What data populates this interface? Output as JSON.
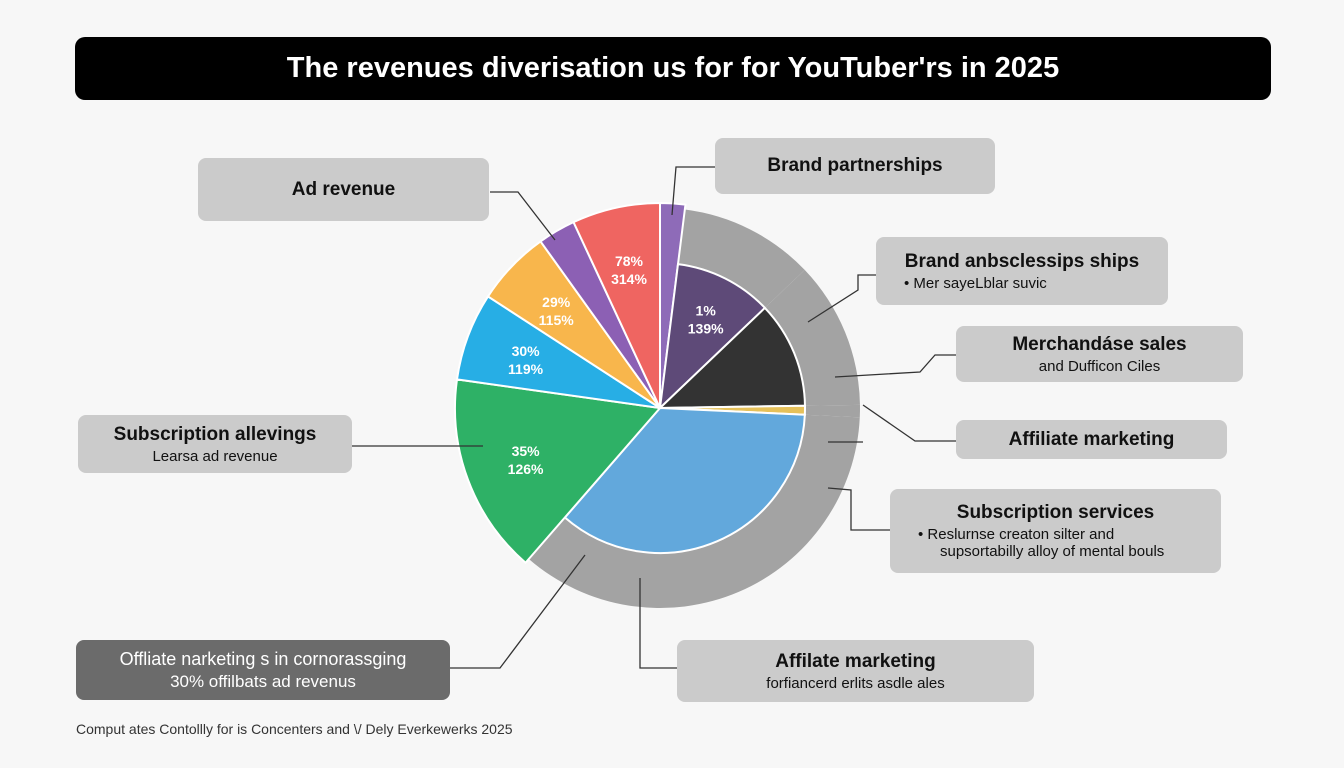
{
  "title": "The revenues diverisation us for for YouTuber'rs in 2025",
  "chart_data": {
    "type": "pie",
    "title": "The revenues diverisation us for for YouTuber'rs in 2025",
    "slices": [
      {
        "name": "Brand partnerships (small)",
        "value": 2,
        "color": "#8e6bb8",
        "label1": "",
        "label2": ""
      },
      {
        "name": "Brand partnerships",
        "value": 11,
        "color": "#5e4a78",
        "label1": "1%",
        "label2": "139%"
      },
      {
        "name": "Merchandise",
        "value": 12,
        "color": "#333333",
        "label1": "",
        "label2": ""
      },
      {
        "name": "Affiliate marketing (thin)",
        "value": 1,
        "color": "#e6c15a",
        "label1": "",
        "label2": ""
      },
      {
        "name": "Subscription services",
        "value": 36,
        "color": "#62a8dc",
        "label1": "",
        "label2": ""
      },
      {
        "name": "Subscription",
        "value": 16,
        "color": "#2eb166",
        "label1": "35%",
        "label2": "126%"
      },
      {
        "name": "Cyan",
        "value": 7,
        "color": "#27aee5",
        "label1": "30%",
        "label2": "119%"
      },
      {
        "name": "Orange",
        "value": 6,
        "color": "#f8b64c",
        "label1": "29%",
        "label2": "115%"
      },
      {
        "name": "Ad revenue",
        "value": 3,
        "color": "#8c60b4",
        "label1": "",
        "label2": ""
      },
      {
        "name": "Red",
        "value": 7,
        "color": "#ef6561",
        "label1": "78%",
        "label2": "314%"
      }
    ],
    "ring_color": "#a3a3a3"
  },
  "callouts": {
    "ad_revenue": {
      "heading": "Ad revenue"
    },
    "brand_partnerships": {
      "heading": "Brand partnerships"
    },
    "brand_sub": {
      "heading": "Brand anbsclessips ships",
      "sub": "• Mer sayeLblar suvic"
    },
    "merch": {
      "heading": "Merchandáse sales",
      "sub": "and Dufficon Ciles"
    },
    "affiliate": {
      "heading": "Affiliate marketing"
    },
    "subscription_services": {
      "heading": "Subscription services",
      "sub": "• Reslurnse creaton silter and",
      "sub2": "supsortabilly alloy of mental bouls"
    },
    "subscription_left": {
      "heading": "Subscription allevings",
      "sub": "Learsa ad revenue"
    },
    "affiliate_bottom": {
      "heading": "Affilate marketing",
      "sub": "forfiancerd erlits asdle ales"
    },
    "offiliate_dark": {
      "heading": "Offliate narketing s in cornorassging",
      "sub": "30% offilbats ad revenus"
    }
  },
  "footer": "Comput ates Contollly for is Concenters and \\/ Dely Everkewerks 2025"
}
